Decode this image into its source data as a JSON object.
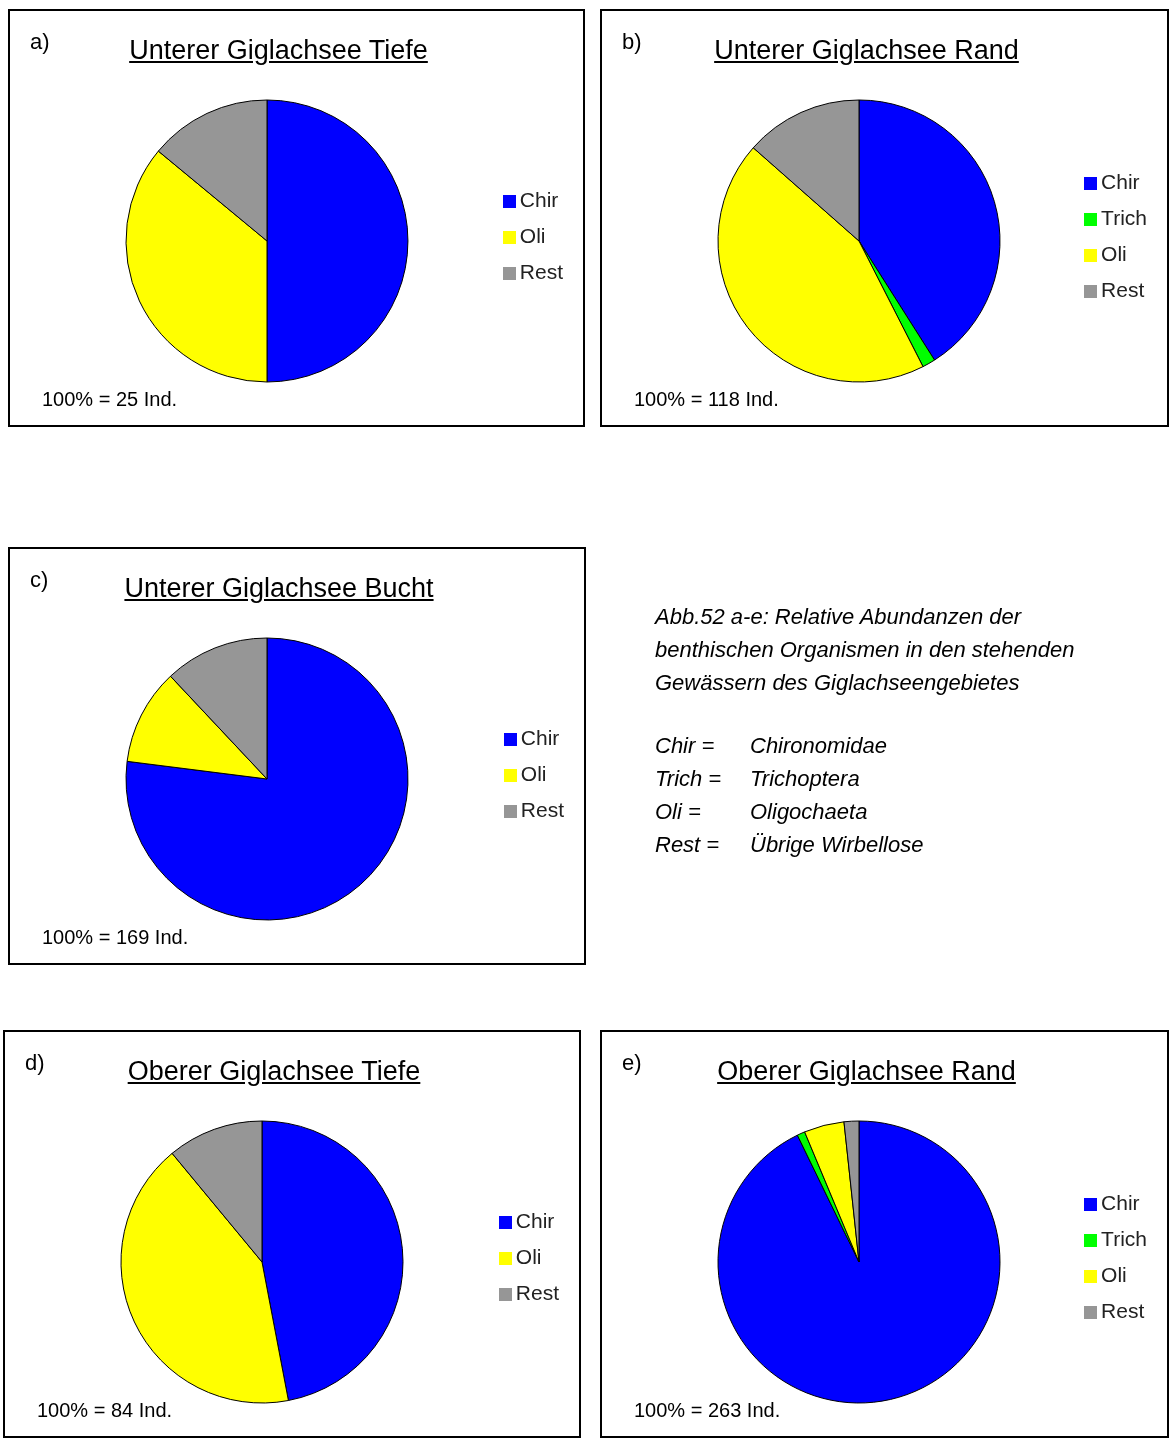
{
  "chart_data": [
    {
      "type": "pie",
      "title": "Unterer Giglachsee Tiefe",
      "categories": [
        "Chir",
        "Oli",
        "Rest"
      ],
      "values": [
        50,
        36,
        14
      ],
      "colors": [
        "#0000ff",
        "#ffff00",
        "#969696"
      ],
      "legend": "right",
      "annotations": [
        "a)",
        "100% = 25 Ind."
      ]
    },
    {
      "type": "pie",
      "title": "Unterer Giglachsee Rand",
      "categories": [
        "Chir",
        "Trich",
        "Oli",
        "Rest"
      ],
      "values": [
        41,
        1.5,
        44,
        13.5
      ],
      "colors": [
        "#0000ff",
        "#00ff00",
        "#ffff00",
        "#969696"
      ],
      "legend": "right",
      "annotations": [
        "b)",
        "100% = 118 Ind."
      ]
    },
    {
      "type": "pie",
      "title": "Unterer Giglachsee Bucht",
      "categories": [
        "Chir",
        "Oli",
        "Rest"
      ],
      "values": [
        77,
        11,
        12
      ],
      "colors": [
        "#0000ff",
        "#ffff00",
        "#969696"
      ],
      "legend": "right",
      "annotations": [
        "c)",
        "100% = 169 Ind."
      ]
    },
    {
      "type": "other",
      "title": "Abb.52 a-e: Relative Abundanzen der benthischen Organismen in den stehenden Gewässern des Giglachseengebietes",
      "annotations": [
        "Chir =",
        "Chironomidae",
        "Trich =",
        "Trichoptera",
        "Oli =",
        "Oligochaeta",
        "Rest =",
        "Übrige Wirbellose"
      ]
    },
    {
      "type": "pie",
      "title": "Oberer Giglachsee Tiefe",
      "categories": [
        "Chir",
        "Oli",
        "Rest"
      ],
      "values": [
        47,
        42,
        11
      ],
      "colors": [
        "#0000ff",
        "#ffff00",
        "#969696"
      ],
      "legend": "right",
      "annotations": [
        "d)",
        "100% = 84 Ind."
      ]
    },
    {
      "type": "pie",
      "title": "Oberer Giglachsee Rand",
      "categories": [
        "Chir",
        "Trich",
        "Oli",
        "Rest"
      ],
      "values": [
        92.8,
        0.9,
        4.6,
        1.7
      ],
      "colors": [
        "#0000ff",
        "#00ff00",
        "#ffff00",
        "#969696"
      ],
      "legend": "right",
      "annotations": [
        "e)",
        "100% = 263 Ind."
      ]
    }
  ]
}
